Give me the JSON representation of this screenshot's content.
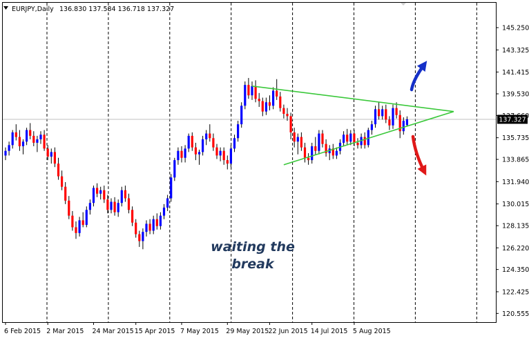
{
  "header": {
    "symbol": "EURJPY,Daily",
    "ohlc": "136.830 137.584 136.718 137.327"
  },
  "chart_data": {
    "type": "candlestick",
    "symbol": "EURJPY",
    "timeframe": "Daily",
    "last_price": 137.327,
    "last_price_label": "137.327",
    "ylim": [
      119.8,
      147.4
    ],
    "y_ticks": [
      "145.250",
      "143.325",
      "141.415",
      "139.530",
      "137.660",
      "135.735",
      "133.865",
      "131.940",
      "130.015",
      "128.135",
      "126.220",
      "124.350",
      "122.425",
      "120.555"
    ],
    "x_ticks": [
      "6 Feb 2015",
      "2 Mar 2015",
      "24 Mar 2015",
      "15 Apr 2015",
      "7 May 2015",
      "29 May 2015",
      "22 Jun 2015",
      "14 Jul 2015",
      "5 Aug 2015"
    ],
    "grid": "vertical dotted separators",
    "colors": {
      "up": "#0000ff",
      "down": "#ff0000",
      "wick": "#000000",
      "trendline": "#3ac83a",
      "arrow_up": "#1530c8",
      "arrow_down": "#e01818"
    },
    "candles": [
      [
        134.2,
        134.9,
        133.8,
        134.6
      ],
      [
        134.6,
        135.4,
        134.2,
        135.1
      ],
      [
        135.1,
        136.4,
        134.8,
        136.2
      ],
      [
        136.2,
        136.9,
        135.5,
        135.8
      ],
      [
        135.8,
        136.4,
        134.6,
        135.0
      ],
      [
        135.0,
        135.6,
        134.3,
        135.4
      ],
      [
        135.4,
        136.6,
        135.1,
        136.4
      ],
      [
        136.4,
        137.0,
        135.6,
        135.9
      ],
      [
        135.9,
        136.3,
        135.0,
        135.3
      ],
      [
        135.3,
        135.9,
        134.5,
        135.6
      ],
      [
        135.6,
        136.3,
        135.2,
        136.0
      ],
      [
        136.0,
        136.4,
        134.6,
        134.8
      ],
      [
        134.8,
        135.1,
        133.8,
        134.1
      ],
      [
        134.1,
        134.8,
        133.5,
        134.5
      ],
      [
        134.5,
        134.9,
        133.2,
        133.5
      ],
      [
        133.5,
        134.0,
        132.1,
        132.4
      ],
      [
        132.4,
        132.9,
        131.2,
        131.5
      ],
      [
        131.5,
        131.9,
        130.0,
        130.3
      ],
      [
        130.3,
        130.7,
        128.7,
        129.0
      ],
      [
        129.0,
        129.4,
        127.7,
        128.0
      ],
      [
        128.0,
        128.5,
        127.0,
        127.5
      ],
      [
        127.5,
        128.9,
        127.2,
        128.6
      ],
      [
        128.6,
        129.3,
        128.0,
        128.2
      ],
      [
        128.2,
        129.8,
        128.0,
        129.5
      ],
      [
        129.5,
        130.4,
        129.1,
        130.1
      ],
      [
        130.1,
        131.6,
        129.8,
        131.4
      ],
      [
        131.4,
        131.8,
        130.6,
        130.9
      ],
      [
        130.9,
        131.5,
        130.4,
        131.2
      ],
      [
        131.2,
        131.6,
        130.1,
        130.4
      ],
      [
        130.4,
        130.8,
        129.2,
        129.5
      ],
      [
        129.5,
        130.5,
        129.2,
        130.2
      ],
      [
        130.2,
        130.6,
        129.0,
        129.3
      ],
      [
        129.3,
        130.4,
        128.9,
        130.1
      ],
      [
        130.1,
        131.5,
        129.8,
        131.2
      ],
      [
        131.2,
        131.6,
        130.2,
        130.5
      ],
      [
        130.5,
        130.9,
        129.2,
        129.5
      ],
      [
        129.5,
        129.8,
        128.1,
        128.4
      ],
      [
        128.4,
        128.7,
        127.1,
        127.4
      ],
      [
        127.4,
        127.7,
        126.3,
        126.8
      ],
      [
        126.8,
        127.9,
        126.1,
        127.6
      ],
      [
        127.6,
        128.6,
        127.2,
        128.3
      ],
      [
        128.3,
        128.7,
        127.4,
        127.7
      ],
      [
        127.7,
        129.0,
        127.4,
        128.7
      ],
      [
        128.7,
        129.2,
        127.8,
        128.1
      ],
      [
        128.1,
        129.3,
        127.8,
        129.0
      ],
      [
        129.0,
        130.0,
        128.7,
        129.7
      ],
      [
        129.7,
        130.8,
        129.4,
        130.5
      ],
      [
        130.5,
        132.6,
        130.2,
        132.3
      ],
      [
        132.3,
        134.0,
        132.0,
        133.8
      ],
      [
        133.8,
        134.9,
        133.4,
        134.6
      ],
      [
        134.6,
        135.0,
        133.6,
        134.0
      ],
      [
        134.0,
        135.1,
        133.6,
        134.8
      ],
      [
        134.8,
        136.1,
        134.5,
        135.9
      ],
      [
        135.9,
        136.2,
        134.6,
        134.9
      ],
      [
        134.9,
        135.3,
        133.8,
        134.3
      ],
      [
        134.3,
        134.7,
        133.4,
        134.5
      ],
      [
        134.5,
        135.9,
        134.2,
        135.6
      ],
      [
        135.6,
        136.4,
        135.1,
        136.1
      ],
      [
        136.1,
        136.9,
        135.4,
        135.7
      ],
      [
        135.7,
        136.1,
        134.6,
        134.9
      ],
      [
        134.9,
        135.2,
        133.9,
        134.2
      ],
      [
        134.2,
        134.9,
        133.7,
        134.6
      ],
      [
        134.6,
        134.9,
        133.4,
        133.8
      ],
      [
        133.8,
        134.2,
        133.0,
        133.5
      ],
      [
        133.5,
        135.1,
        133.2,
        134.8
      ],
      [
        134.8,
        136.0,
        134.5,
        135.7
      ],
      [
        135.7,
        137.2,
        135.4,
        136.9
      ],
      [
        136.9,
        138.8,
        136.6,
        138.5
      ],
      [
        138.5,
        140.6,
        138.2,
        140.3
      ],
      [
        140.3,
        140.9,
        139.1,
        139.4
      ],
      [
        139.4,
        140.6,
        139.0,
        140.2
      ],
      [
        140.2,
        140.7,
        138.8,
        139.1
      ],
      [
        139.1,
        139.6,
        138.4,
        138.9
      ],
      [
        138.9,
        139.2,
        137.6,
        138.0
      ],
      [
        138.0,
        139.2,
        137.7,
        138.8
      ],
      [
        138.8,
        139.4,
        138.1,
        138.5
      ],
      [
        138.5,
        140.1,
        138.2,
        139.8
      ],
      [
        139.8,
        140.8,
        139.0,
        139.3
      ],
      [
        139.3,
        139.7,
        138.0,
        138.3
      ],
      [
        138.3,
        138.6,
        137.4,
        137.8
      ],
      [
        137.8,
        138.3,
        137.2,
        137.6
      ],
      [
        137.6,
        137.9,
        135.6,
        136.2
      ],
      [
        136.2,
        136.6,
        134.9,
        135.4
      ],
      [
        135.4,
        136.1,
        134.3,
        135.8
      ],
      [
        135.8,
        136.2,
        134.6,
        134.9
      ],
      [
        134.9,
        135.3,
        133.6,
        134.0
      ],
      [
        134.0,
        134.4,
        133.4,
        133.8
      ],
      [
        133.8,
        135.3,
        133.5,
        135.0
      ],
      [
        135.0,
        135.8,
        134.3,
        134.6
      ],
      [
        134.6,
        136.4,
        134.3,
        136.1
      ],
      [
        136.1,
        136.4,
        134.9,
        135.2
      ],
      [
        135.2,
        135.6,
        134.1,
        134.4
      ],
      [
        134.4,
        135.1,
        133.8,
        134.8
      ],
      [
        134.8,
        135.2,
        133.9,
        134.2
      ],
      [
        134.2,
        134.9,
        133.9,
        134.6
      ],
      [
        134.6,
        135.6,
        134.3,
        135.3
      ],
      [
        135.3,
        136.3,
        135.0,
        136.0
      ],
      [
        136.0,
        136.5,
        135.1,
        135.4
      ],
      [
        135.4,
        136.4,
        135.1,
        136.1
      ],
      [
        136.1,
        136.4,
        135.0,
        135.3
      ],
      [
        135.3,
        135.7,
        134.8,
        135.1
      ],
      [
        135.1,
        136.1,
        134.8,
        135.8
      ],
      [
        135.8,
        136.2,
        134.8,
        135.1
      ],
      [
        135.1,
        136.6,
        134.9,
        136.4
      ],
      [
        136.4,
        137.2,
        136.0,
        136.9
      ],
      [
        136.9,
        138.5,
        136.6,
        138.2
      ],
      [
        138.2,
        138.8,
        137.3,
        137.6
      ],
      [
        137.6,
        138.5,
        137.3,
        138.2
      ],
      [
        138.2,
        138.6,
        137.0,
        137.3
      ],
      [
        137.3,
        137.6,
        136.4,
        136.8
      ],
      [
        136.8,
        138.6,
        136.5,
        138.3
      ],
      [
        138.3,
        138.8,
        137.4,
        137.7
      ],
      [
        137.7,
        138.1,
        135.7,
        136.3
      ],
      [
        136.3,
        137.5,
        136.0,
        137.2
      ],
      [
        136.83,
        137.584,
        136.718,
        137.327
      ]
    ],
    "trendlines": [
      [
        [
          70,
          140.2
        ],
        [
          118,
          138.0
        ]
      ],
      [
        [
          79,
          133.4
        ],
        [
          118,
          138.0
        ]
      ]
    ],
    "annotation": [
      "waiting the",
      "break"
    ]
  }
}
